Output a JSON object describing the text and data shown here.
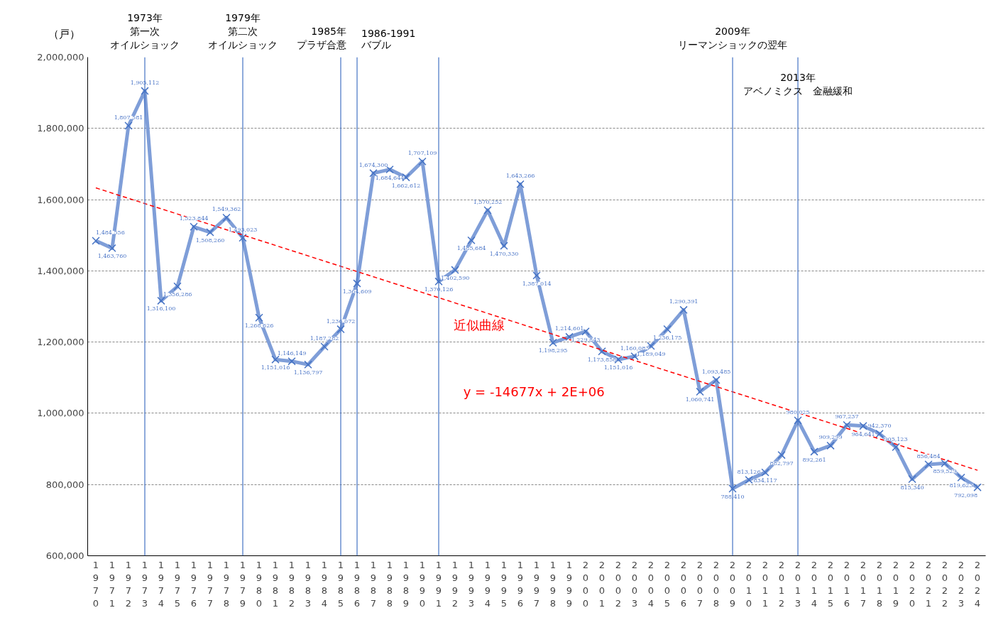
{
  "chart_data": {
    "type": "line",
    "ylabel": "（戸）",
    "x": [
      1970,
      1971,
      1972,
      1973,
      1974,
      1975,
      1976,
      1977,
      1978,
      1979,
      1980,
      1981,
      1982,
      1983,
      1984,
      1985,
      1986,
      1987,
      1988,
      1989,
      1990,
      1991,
      1992,
      1993,
      1994,
      1995,
      1996,
      1997,
      1998,
      1999,
      2000,
      2001,
      2002,
      2003,
      2004,
      2005,
      2006,
      2007,
      2008,
      2009,
      2010,
      2011,
      2012,
      2013,
      2014,
      2015,
      2016,
      2017,
      2018,
      2019,
      2020,
      2021,
      2022,
      2023,
      2024
    ],
    "series": [
      {
        "color": "#7f9ed8",
        "marker": "cross",
        "line_style": "solid",
        "values": [
          1484556,
          1463760,
          1807581,
          1905112,
          1316100,
          1356286,
          1523844,
          1508260,
          1549362,
          1493023,
          1268626,
          1151016,
          1146149,
          1136797,
          1187282,
          1236072,
          1364609,
          1674300,
          1684644,
          1662612,
          1707109,
          1370126,
          1402590,
          1485684,
          1570252,
          1470330,
          1643266,
          1387014,
          1198295,
          1214601,
          1229843,
          1173858,
          1151016,
          1160083,
          1189049,
          1236175,
          1290391,
          1060741,
          1093485,
          788410,
          813126,
          834117,
          882797,
          980025,
          892261,
          909299,
          967237,
          964641,
          942370,
          905123,
          815340,
          856484,
          859529,
          819623,
          792098
        ],
        "value_labels": [
          "1,484,556",
          "1,463,760",
          "1,807,581",
          "1,905,112",
          "1,316,100",
          "1,356,286",
          "1,523,844",
          "1,508,260",
          "1,549,362",
          "1,493,023",
          "1,268,626",
          "1,151,016",
          "1,146,149",
          "1,136,797",
          "1,187,282",
          "1,236,072",
          "1,364,609",
          "1,674,300",
          "1,684,644",
          "1,662,612",
          "1,707,109",
          "1,370,126",
          "1,402,590",
          "1,485,684",
          "1,570,252",
          "1,470,330",
          "1,643,266",
          "1,387,014",
          "1,198,295",
          "1,214,601",
          "1,229,843",
          "1,173,858",
          "1,151,016",
          "1,160,083",
          "1,189,049",
          "1,236,175",
          "1,290,391",
          "1,060,741",
          "1,093,485",
          "788,410",
          "813,126",
          "834,117",
          "882,797",
          "980,025",
          "892,261",
          "909,299",
          "967,237",
          "964,641",
          "942,370",
          "905,123",
          "815,340",
          "856,484",
          "859,529",
          "819,623",
          "792,098"
        ]
      },
      {
        "type": "line",
        "color": "#ff0000",
        "marker": "none",
        "line_style": "dashed",
        "x": [
          1970,
          2024
        ],
        "values": [
          1633000,
          840000
        ]
      }
    ],
    "xlim": [
      1969.5,
      2024.5
    ],
    "xticks": [
      1970,
      1971,
      1972,
      1973,
      1974,
      1975,
      1976,
      1977,
      1978,
      1979,
      1980,
      1981,
      1982,
      1983,
      1984,
      1985,
      1986,
      1987,
      1988,
      1989,
      1990,
      1991,
      1992,
      1993,
      1994,
      1995,
      1996,
      1997,
      1998,
      1999,
      2000,
      2001,
      2002,
      2003,
      2004,
      2005,
      2006,
      2007,
      2008,
      2009,
      2010,
      2011,
      2012,
      2013,
      2014,
      2015,
      2016,
      2017,
      2018,
      2019,
      2020,
      2021,
      2022,
      2023,
      2024
    ],
    "ylim": [
      600000,
      2000000
    ],
    "yticks": [
      {
        "value": 600000,
        "label": "600,000"
      },
      {
        "value": 800000,
        "label": "800,000"
      },
      {
        "value": 1000000,
        "label": "1,000,000"
      },
      {
        "value": 1200000,
        "label": "1,200,000"
      },
      {
        "value": 1400000,
        "label": "1,400,000"
      },
      {
        "value": 1600000,
        "label": "1,600,000"
      },
      {
        "value": 1800000,
        "label": "1,800,000"
      },
      {
        "value": 2000000,
        "label": "2,000,000"
      }
    ],
    "grid": "y",
    "ref_lines": [
      {
        "axis": "x",
        "value": 1973,
        "label": "1973年第一次オイルショック",
        "color": "#4472c4"
      },
      {
        "axis": "x",
        "value": 1979,
        "label": "1979年第二次オイルショック",
        "color": "#4472c4"
      },
      {
        "axis": "x",
        "value": 1985,
        "label": "1985年プラザ合意",
        "color": "#4472c4"
      },
      {
        "axis": "x",
        "value": 1986,
        "label": "1986-1991バブル",
        "color": "#4472c4"
      },
      {
        "axis": "x",
        "value": 1991,
        "label": null,
        "color": "#4472c4"
      },
      {
        "axis": "x",
        "value": 2009,
        "label": "2009年リーマンショックの翌年",
        "color": "#4472c4"
      },
      {
        "axis": "x",
        "value": 2013,
        "label": "2013年アベノミクス　金融緩和",
        "color": "#4472c4"
      }
    ],
    "annotations": [
      "近似曲線",
      "y = -14677x + 2E+06"
    ]
  }
}
